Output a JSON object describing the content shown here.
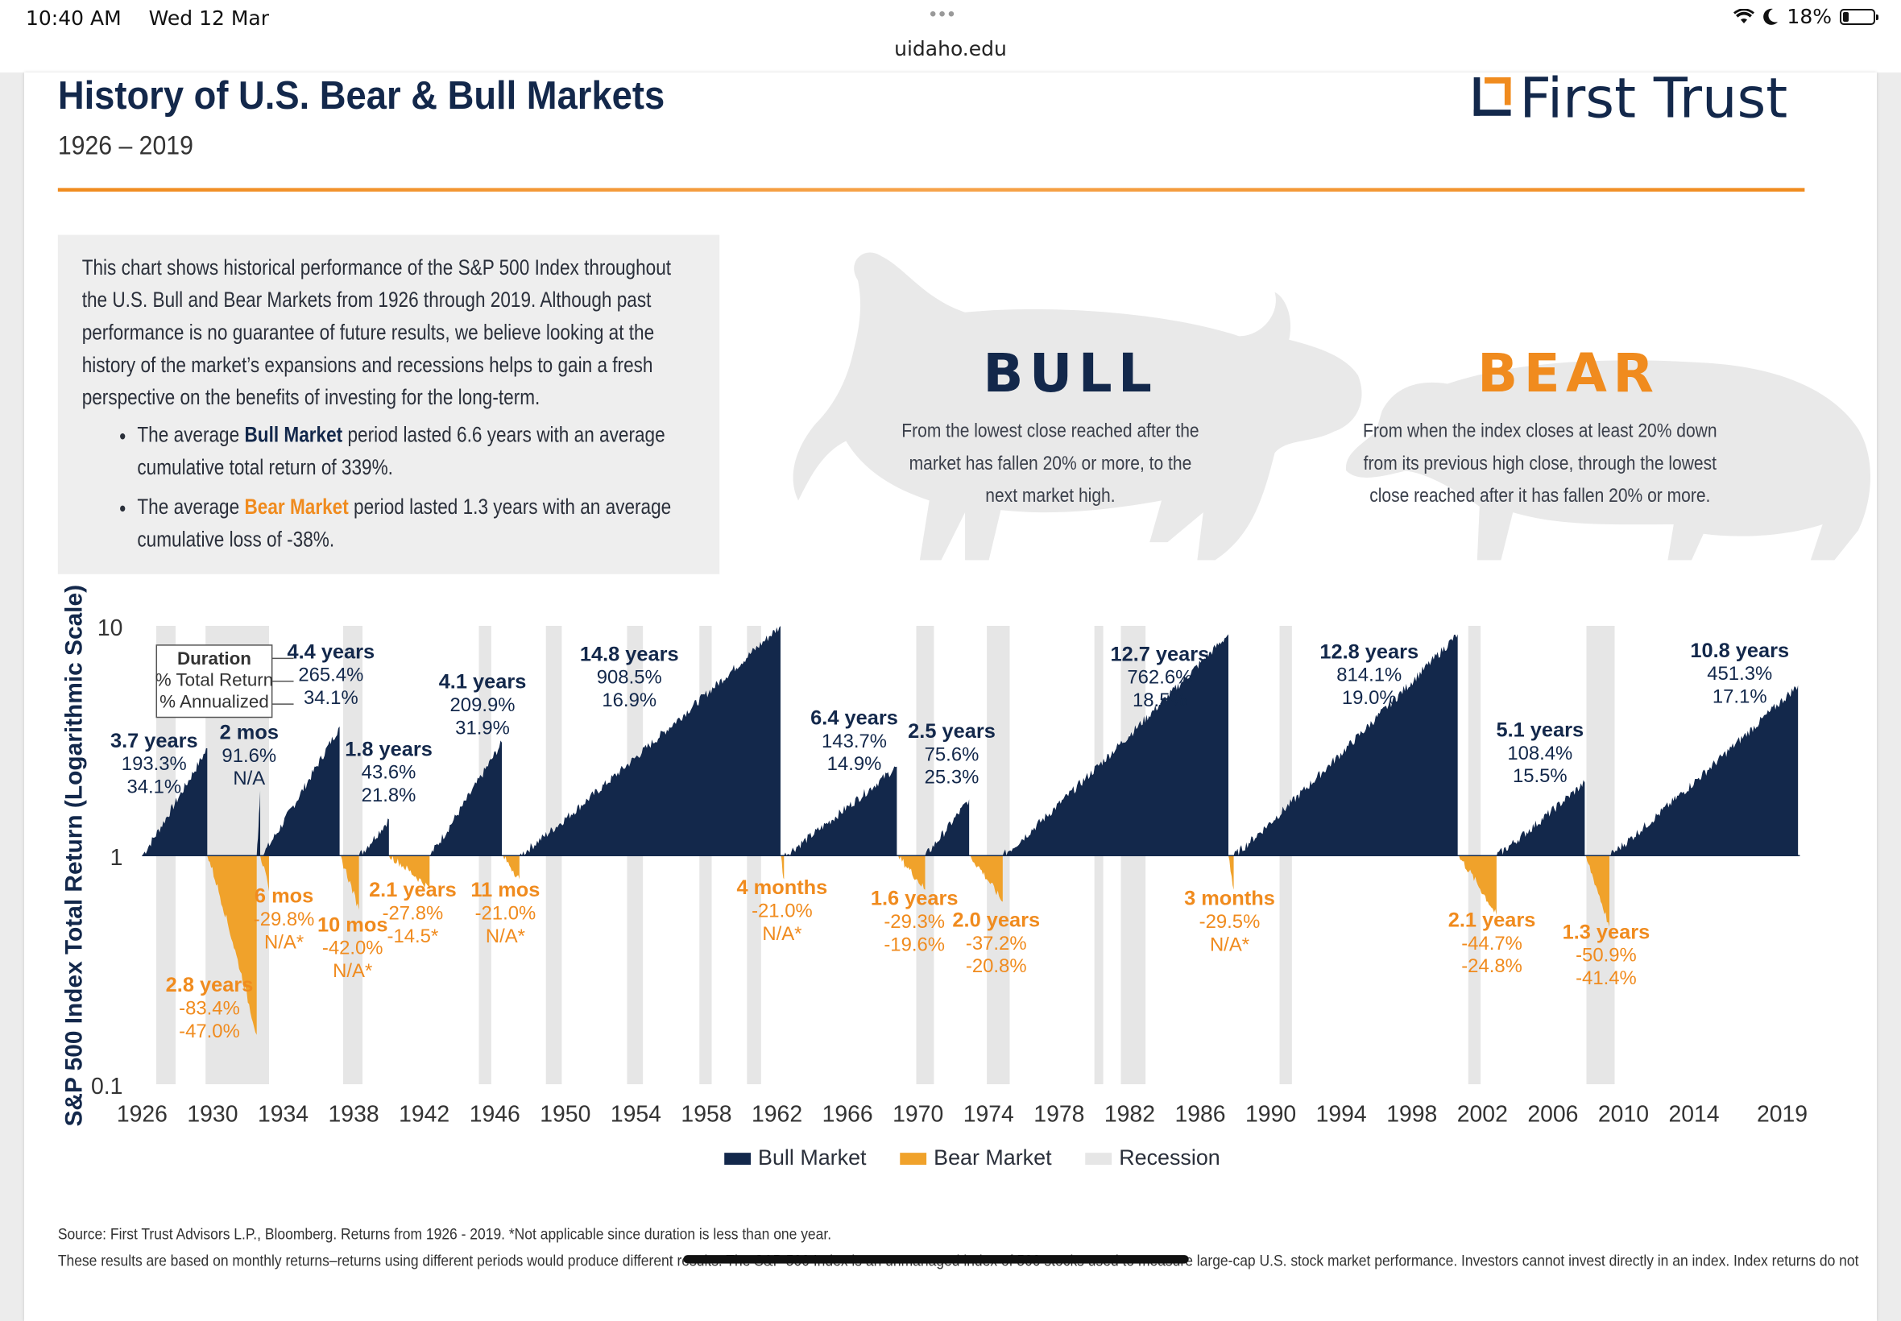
{
  "status_bar": {
    "time": "10:40 AM",
    "date": "Wed 12 Mar",
    "url": "uidaho.edu",
    "battery": "18%",
    "battery_level": 0.18
  },
  "header": {
    "title": "History of U.S. Bear & Bull Markets",
    "subtitle": "1926 – 2019",
    "logo_text": "First Trust"
  },
  "intro": {
    "paragraph": "This chart shows historical performance of the S&P 500 Index throughout the U.S. Bull and Bear Markets from 1926 through 2019. Although past performance is no guarantee of future results, we believe looking at the history of the market’s expansions and recessions helps to gain a fresh perspective on the benefits of investing for the long-term.",
    "bullet1_pre": "The average ",
    "bullet1_strong": "Bull Market",
    "bullet1_post": " period lasted 6.6 years with an average cumulative total return of 339%.",
    "bullet2_pre": "The average ",
    "bullet2_strong": "Bear Market",
    "bullet2_post": " period lasted 1.3 years with an average cumulative loss of -38%."
  },
  "definitions": {
    "bull_title": "BULL",
    "bull_text": "From the lowest close reached after the market has fallen 20% or more, to the next market high.",
    "bear_title": "BEAR",
    "bear_text": "From when the index closes at least 20% down from its previous high close, through the lowest close reached after it has fallen 20% or more."
  },
  "legend": {
    "bull": "Bull Market",
    "bear": "Bear Market",
    "recession": "Recession"
  },
  "source": {
    "line1": "Source: First Trust Advisors L.P., Bloomberg. Returns from 1926 - 2019. *Not applicable since duration is less than one year.",
    "line2": "These results are based on monthly returns–returns using different periods would produce different results. The S&P 500 Index is an unmanaged index of 500 stocks used to measure large-cap U.S. stock market performance. Investors cannot invest directly in an index. Index returns do not"
  },
  "chart_data": {
    "type": "area",
    "ylabel": "S&P 500 Index Total Return (Logarithmic Scale)",
    "y_scale": "log",
    "ylim": [
      0.1,
      10
    ],
    "y_ticks": [
      "10",
      "1",
      "0.1"
    ],
    "x_ticks": [
      "1926",
      "1930",
      "1934",
      "1938",
      "1942",
      "1946",
      "1950",
      "1954",
      "1958",
      "1962",
      "1966",
      "1970",
      "1974",
      "1978",
      "1982",
      "1986",
      "1990",
      "1994",
      "1998",
      "2002",
      "2006",
      "2010",
      "2014",
      "2019"
    ],
    "duration_key": {
      "line1": "Duration",
      "line2": "% Total Return",
      "line3": "% Annualized"
    },
    "colors": {
      "bull": "#13284b",
      "bear": "#f0a22b",
      "recession": "#e6e6e6"
    },
    "recessions": [
      [
        1926.8,
        1927.9
      ],
      [
        1929.6,
        1933.2
      ],
      [
        1937.4,
        1938.5
      ],
      [
        1945.1,
        1945.8
      ],
      [
        1948.9,
        1949.8
      ],
      [
        1953.5,
        1954.4
      ],
      [
        1957.6,
        1958.3
      ],
      [
        1960.3,
        1961.1
      ],
      [
        1969.9,
        1970.9
      ],
      [
        1973.9,
        1975.2
      ],
      [
        1980.0,
        1980.5
      ],
      [
        1981.5,
        1982.9
      ],
      [
        1990.5,
        1991.2
      ],
      [
        2001.2,
        2001.9
      ],
      [
        2007.9,
        2009.5
      ]
    ],
    "bull_markets": [
      {
        "start": 1926.0,
        "end": 1929.7,
        "peak": 2.93,
        "duration": "3.7 years",
        "total_return": "193.3%",
        "annualized": "34.1%"
      },
      {
        "start": 1932.5,
        "end": 1932.7,
        "peak": 1.92,
        "duration": "2 mos",
        "total_return": "91.6%",
        "annualized": "N/A"
      },
      {
        "start": 1932.8,
        "end": 1937.2,
        "peak": 3.65,
        "duration": "4.4 years",
        "total_return": "265.4%",
        "annualized": "34.1%"
      },
      {
        "start": 1938.3,
        "end": 1940.0,
        "peak": 1.44,
        "duration": "1.8 years",
        "total_return": "43.6%",
        "annualized": "21.8%"
      },
      {
        "start": 1942.3,
        "end": 1946.4,
        "peak": 3.1,
        "duration": "4.1 years",
        "total_return": "209.9%",
        "annualized": "31.9%"
      },
      {
        "start": 1947.4,
        "end": 1962.2,
        "peak": 10.0,
        "duration": "14.8 years",
        "total_return": "908.5%",
        "annualized": "16.9%"
      },
      {
        "start": 1962.4,
        "end": 1968.8,
        "peak": 2.44,
        "duration": "6.4 years",
        "total_return": "143.7%",
        "annualized": "14.9%"
      },
      {
        "start": 1970.4,
        "end": 1972.9,
        "peak": 1.76,
        "duration": "2.5 years",
        "total_return": "75.6%",
        "annualized": "25.3%"
      },
      {
        "start": 1974.8,
        "end": 1987.6,
        "peak": 9.2,
        "duration": "12.7 years",
        "total_return": "762.6%",
        "annualized": "18.5%"
      },
      {
        "start": 1987.9,
        "end": 2000.6,
        "peak": 9.2,
        "duration": "12.8 years",
        "total_return": "814.1%",
        "annualized": "19.0%"
      },
      {
        "start": 2002.8,
        "end": 2007.8,
        "peak": 2.08,
        "duration": "5.1 years",
        "total_return": "108.4%",
        "annualized": "15.5%"
      },
      {
        "start": 2009.2,
        "end": 2019.9,
        "peak": 5.51,
        "duration": "10.8 years",
        "total_return": "451.3%",
        "annualized": "17.1%"
      }
    ],
    "bear_markets": [
      {
        "start": 1929.7,
        "end": 1932.5,
        "trough": 0.166,
        "duration": "2.8 years",
        "total_return": "-83.4%",
        "annualized": "-47.0%"
      },
      {
        "start": 1932.7,
        "end": 1933.2,
        "trough": 0.7,
        "duration": "6 mos",
        "total_return": "-29.8%",
        "annualized": "N/A*"
      },
      {
        "start": 1937.2,
        "end": 1938.3,
        "trough": 0.58,
        "duration": "10 mos",
        "total_return": "-42.0%",
        "annualized": "N/A*"
      },
      {
        "start": 1940.0,
        "end": 1942.3,
        "trough": 0.72,
        "duration": "2.1 years",
        "total_return": "-27.8%",
        "annualized": "-14.5*"
      },
      {
        "start": 1946.4,
        "end": 1947.4,
        "trough": 0.79,
        "duration": "11 mos",
        "total_return": "-21.0%",
        "annualized": "N/A*"
      },
      {
        "start": 1962.2,
        "end": 1962.4,
        "trough": 0.79,
        "duration": "4 months",
        "total_return": "-21.0%",
        "annualized": "N/A*"
      },
      {
        "start": 1968.8,
        "end": 1970.4,
        "trough": 0.71,
        "duration": "1.6 years",
        "total_return": "-29.3%",
        "annualized": "-19.6%"
      },
      {
        "start": 1972.9,
        "end": 1974.8,
        "trough": 0.63,
        "duration": "2.0 years",
        "total_return": "-37.2%",
        "annualized": "-20.8%"
      },
      {
        "start": 1987.6,
        "end": 1987.9,
        "trough": 0.71,
        "duration": "3 months",
        "total_return": "-29.5%",
        "annualized": "N/A*"
      },
      {
        "start": 2000.6,
        "end": 2002.8,
        "trough": 0.55,
        "duration": "2.1 years",
        "total_return": "-44.7%",
        "annualized": "-24.8%"
      },
      {
        "start": 2007.8,
        "end": 2009.2,
        "trough": 0.49,
        "duration": "1.3 years",
        "total_return": "-50.9%",
        "annualized": "-41.4%"
      }
    ]
  }
}
